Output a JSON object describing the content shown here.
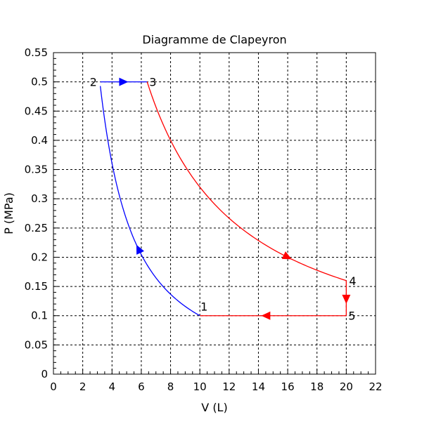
{
  "chart_data": {
    "type": "line",
    "title": "Diagramme de Clapeyron",
    "xlabel": "V (L)",
    "ylabel": "P (MPa)",
    "xlim": [
      0,
      22
    ],
    "ylim": [
      0,
      0.55
    ],
    "xticks": [
      0,
      2,
      4,
      6,
      8,
      10,
      12,
      14,
      16,
      18,
      20,
      22
    ],
    "yticks": [
      0,
      0.05,
      0.1,
      0.15,
      0.2,
      0.25,
      0.3,
      0.35,
      0.4,
      0.45,
      0.5,
      0.55
    ],
    "xtick_labels": [
      "0",
      "2",
      "4",
      "6",
      "8",
      "10",
      "12",
      "14",
      "16",
      "18",
      "20",
      "22"
    ],
    "ytick_labels": [
      "0",
      "0.05",
      "0.1",
      "0.15",
      "0.2",
      "0.25",
      "0.3",
      "0.35",
      "0.4",
      "0.45",
      "0.5",
      "0.55"
    ],
    "grid": true,
    "grid_style": "dashed",
    "points": [
      {
        "label": "1",
        "x": 10,
        "y": 0.1
      },
      {
        "label": "2",
        "x": 3.2,
        "y": 0.5
      },
      {
        "label": "3",
        "x": 6.4,
        "y": 0.5
      },
      {
        "label": "4",
        "x": 20,
        "y": 0.16
      },
      {
        "label": "5",
        "x": 20,
        "y": 0.1
      }
    ],
    "series": [
      {
        "id": "compression-1-2",
        "color": "#0000ff",
        "kind": "curve",
        "gamma": 1.4,
        "from": [
          10,
          0.1
        ],
        "to": [
          3.2,
          0.5
        ],
        "arrow_at_x": 5.8
      },
      {
        "id": "isobar-2-3",
        "color": "#0000ff",
        "kind": "line",
        "from": [
          3.2,
          0.5
        ],
        "to": [
          6.4,
          0.5
        ],
        "arrow_at_x": 4.8
      },
      {
        "id": "expansion-3-4",
        "color": "#ff0000",
        "kind": "curve",
        "gamma": 1.0,
        "from": [
          6.4,
          0.5
        ],
        "to": [
          20,
          0.16
        ],
        "arrow_at_x": 16
      },
      {
        "id": "isochore-4-5",
        "color": "#ff0000",
        "kind": "line",
        "from": [
          20,
          0.16
        ],
        "to": [
          20,
          0.1
        ],
        "arrow_at_y": 0.128
      },
      {
        "id": "isobar-5-1",
        "color": "#ff0000",
        "kind": "line",
        "from": [
          20,
          0.1
        ],
        "to": [
          10,
          0.1
        ],
        "arrow_at_x": 14.5
      }
    ]
  }
}
